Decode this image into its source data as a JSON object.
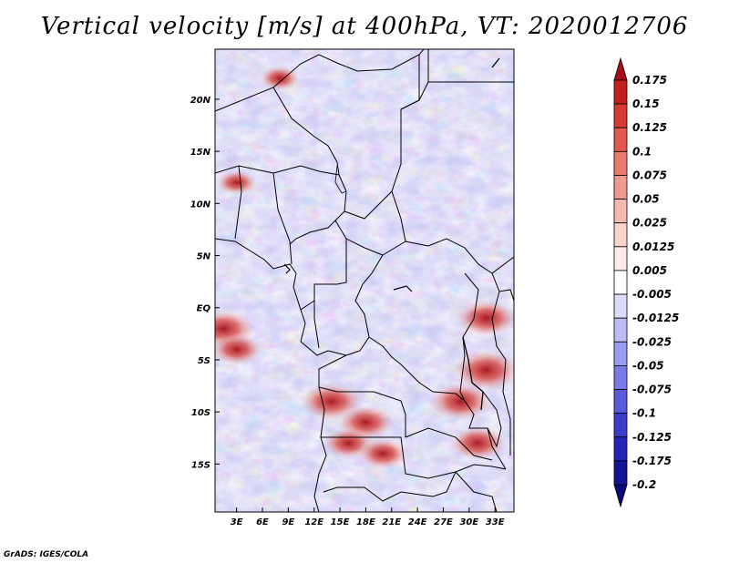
{
  "title": "Vertical velocity [m/s] at 400hPa, VT: 2020012706",
  "credit": "GrADS: IGES/COLA",
  "map": {
    "lon_labels": [
      "3E",
      "6E",
      "9E",
      "12E",
      "15E",
      "18E",
      "21E",
      "24E",
      "27E",
      "30E",
      "33E"
    ],
    "lon_values": [
      3,
      6,
      9,
      12,
      15,
      18,
      21,
      24,
      27,
      30,
      33
    ],
    "lat_labels": [
      "20N",
      "15N",
      "10N",
      "5N",
      "EQ",
      "5S",
      "10S",
      "15S"
    ],
    "lat_values": [
      20,
      15,
      10,
      5,
      0,
      -5,
      -10,
      -15
    ],
    "lon_range": [
      0.5,
      35.2
    ],
    "lat_range": [
      -19.6,
      24.8
    ],
    "regions_positive": [
      {
        "lon": 1.5,
        "lat": -2,
        "val": 0.15
      },
      {
        "lon": 3,
        "lat": -4,
        "val": 0.1
      },
      {
        "lon": 14,
        "lat": -9,
        "val": 0.15
      },
      {
        "lon": 18,
        "lat": -11,
        "val": 0.125
      },
      {
        "lon": 16,
        "lat": -13,
        "val": 0.1
      },
      {
        "lon": 29,
        "lat": -9,
        "val": 0.15
      },
      {
        "lon": 32,
        "lat": -6,
        "val": 0.175
      },
      {
        "lon": 32,
        "lat": -1,
        "val": 0.15
      },
      {
        "lon": 31,
        "lat": -13,
        "val": 0.125
      },
      {
        "lon": 20,
        "lat": -14,
        "val": 0.1
      },
      {
        "lon": 8,
        "lat": 22,
        "val": 0.05
      },
      {
        "lon": 3,
        "lat": 12,
        "val": 0.05
      }
    ]
  },
  "colorbar": {
    "labels": [
      "0.175",
      "0.15",
      "0.125",
      "0.1",
      "0.075",
      "0.05",
      "0.025",
      "0.0125",
      "0.005",
      "-0.005",
      "-0.0125",
      "-0.025",
      "-0.05",
      "-0.075",
      "-0.1",
      "-0.125",
      "-0.175",
      "-0.2"
    ],
    "colors": [
      "#a50f15",
      "#c21f1f",
      "#d63b33",
      "#e05a4f",
      "#e87a6e",
      "#ee9a8e",
      "#f4b9ae",
      "#f8d4cc",
      "#fcebe6",
      "#ffffff",
      "#dcdcfa",
      "#bdbdf5",
      "#9c9cf0",
      "#7b7be8",
      "#5a5adc",
      "#3c3ccc",
      "#2424b8",
      "#141496",
      "#0a0a78"
    ]
  }
}
